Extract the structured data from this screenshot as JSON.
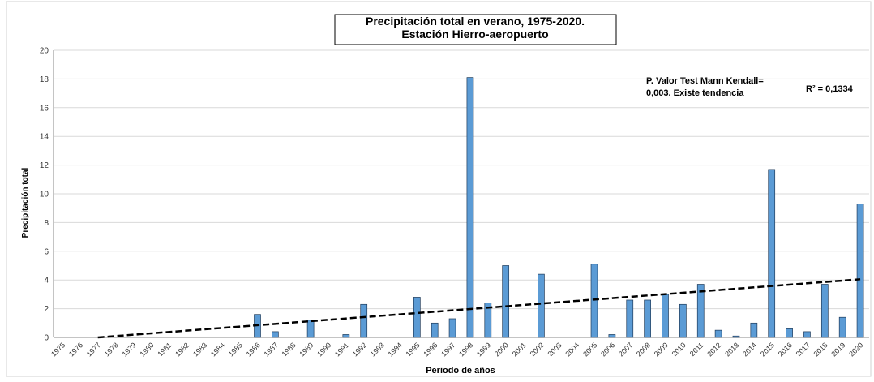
{
  "chart_data": {
    "type": "bar",
    "title": [
      "Precipitación total en verano, 1975-2020.",
      "Estación Hierro-aeropuerto"
    ],
    "annotations": [
      "P. Valor Test Mann Kendall=",
      "0,003. Existe tendencia",
      "R² = 0,1334"
    ],
    "y_label": "Precipitación total",
    "x_label": "Periodo de años",
    "categories": [
      "1975",
      "1976",
      "1977",
      "1978",
      "1979",
      "1980",
      "1981",
      "1982",
      "1983",
      "1984",
      "1985",
      "1986",
      "1987",
      "1988",
      "1989",
      "1990",
      "1991",
      "1992",
      "1993",
      "1994",
      "1995",
      "1996",
      "1997",
      "1998",
      "1999",
      "2000",
      "2001",
      "2002",
      "2003",
      "2004",
      "2005",
      "2006",
      "2007",
      "2008",
      "2009",
      "2010",
      "2011",
      "2012",
      "2013",
      "2014",
      "2015",
      "2016",
      "2017",
      "2018",
      "2019",
      "2020"
    ],
    "values": [
      0,
      0,
      0,
      0,
      0,
      0,
      0,
      0,
      0,
      0,
      0,
      1.6,
      0.4,
      0,
      1.2,
      0,
      0.2,
      2.3,
      0,
      0,
      2.8,
      1.0,
      1.3,
      18.1,
      2.4,
      5.0,
      0,
      4.4,
      0,
      0,
      5.1,
      0.2,
      2.6,
      2.6,
      3.0,
      2.3,
      3.7,
      0.5,
      0.1,
      1.0,
      11.7,
      0.6,
      0.4,
      3.7,
      1.4,
      9.3
    ],
    "color": "#5b9bd5",
    "trend_line": {
      "x": [
        "1977",
        "2020"
      ],
      "values": [
        0,
        4.05
      ]
    },
    "ylim": [
      0,
      20
    ],
    "yticks": [
      0,
      2,
      4,
      6,
      8,
      10,
      12,
      14,
      16,
      18,
      20
    ],
    "grid": true
  }
}
